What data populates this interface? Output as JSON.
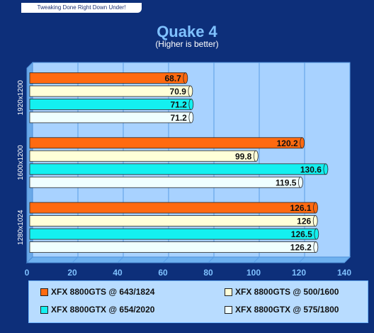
{
  "banner": "Tweaking Done Right Down Under!",
  "colors": {
    "frame": "#0d2f7a",
    "plot_bg": "#a8d2ff",
    "plot_side": "#6aa9e8",
    "plot_floor": "#6fb1ef",
    "grid": "#5a9fe6"
  },
  "chart_data": {
    "type": "bar",
    "orientation": "horizontal",
    "title": "Quake 4",
    "subtitle": "(Higher is better)",
    "categories": [
      "1920x1200",
      "1600x1200",
      "1280x1024"
    ],
    "xlim": [
      0,
      140
    ],
    "x_ticks": [
      "0",
      "20",
      "40",
      "60",
      "80",
      "100",
      "120",
      "140"
    ],
    "grid": true,
    "legend_position": "bottom",
    "series": [
      {
        "name": "XFX 8800GTS @ 643/1824",
        "color": "#ff6a10",
        "values": [
          68.7,
          120.2,
          126.1
        ],
        "labels": [
          "68.7",
          "120.2",
          "126.1"
        ]
      },
      {
        "name": "XFX 8800GTS @ 500/1600",
        "color": "#ffffd8",
        "values": [
          70.9,
          99.8,
          126
        ],
        "labels": [
          "70.9",
          "99.8",
          "126"
        ]
      },
      {
        "name": "XFX 8800GTX @ 654/2020",
        "color": "#14f0f0",
        "values": [
          71.2,
          130.6,
          126.5
        ],
        "labels": [
          "71.2",
          "130.6",
          "126.5"
        ]
      },
      {
        "name": "XFX 8800GTX @ 575/1800",
        "color": "#f0ffff",
        "values": [
          71.2,
          119.5,
          126.2
        ],
        "labels": [
          "71.2",
          "119.5",
          "126.2"
        ]
      }
    ]
  }
}
